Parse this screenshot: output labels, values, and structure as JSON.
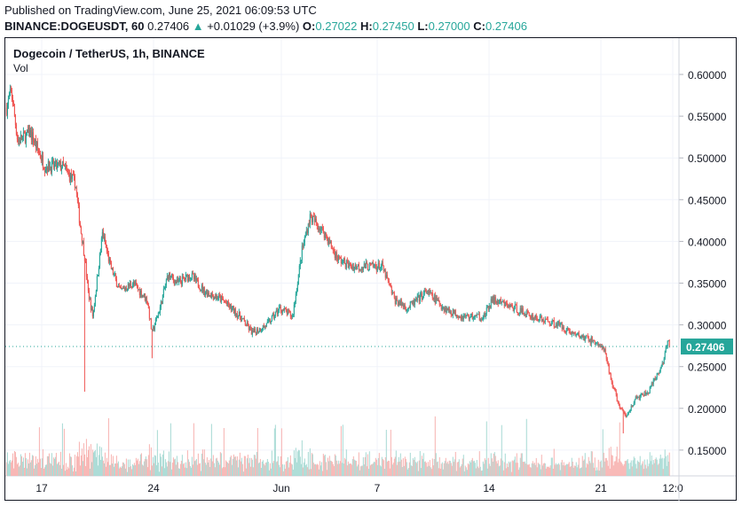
{
  "header": {
    "published": "Published on TradingView.com, June 25, 2021 06:09:53 UTC",
    "symbol": "BINANCE:DOGEUSDT, 60",
    "last": "0.27406",
    "change": "+0.01029 (+3.9%)",
    "o_label": "O:",
    "o": "0.27022",
    "h_label": "H:",
    "h": "0.27450",
    "l_label": "L:",
    "l": "0.27000",
    "c_label": "C:",
    "c": "0.27406"
  },
  "legend": {
    "title": "Dogecoin / TetherUS, 1h, BINANCE",
    "vol": "Vol"
  },
  "colors": {
    "up": "#26a69a",
    "down": "#ef5350",
    "up_vol": "#a5d9d3",
    "down_vol": "#f7b1af",
    "grid": "#f0f3fa",
    "axis_text": "#131722"
  },
  "chart_data": {
    "type": "candlestick",
    "title": "Dogecoin / TetherUS, 1h, BINANCE",
    "x_unit": "days since May 17 2021",
    "xlim": [
      -2.2,
      40.8
    ],
    "ylim": [
      0.125,
      0.625
    ],
    "y_ticks": [
      "0.60000",
      "0.55000",
      "0.50000",
      "0.45000",
      "0.40000",
      "0.35000",
      "0.30000",
      "0.25000",
      "0.20000",
      "0.15000"
    ],
    "y_tick_values": [
      0.6,
      0.55,
      0.5,
      0.45,
      0.4,
      0.35,
      0.3,
      0.25,
      0.2,
      0.15
    ],
    "x_ticks": [
      {
        "label": "17",
        "day": 0
      },
      {
        "label": "24",
        "day": 7
      },
      {
        "label": "Jun",
        "day": 15
      },
      {
        "label": "7",
        "day": 21
      },
      {
        "label": "14",
        "day": 28
      },
      {
        "label": "21",
        "day": 35
      },
      {
        "label": "12:0",
        "day": 39.5
      }
    ],
    "last_price_label": "0.27406",
    "last_price": 0.27406,
    "price_path": [
      [
        -2.2,
        0.56
      ],
      [
        -1.9,
        0.58
      ],
      [
        -1.5,
        0.52
      ],
      [
        -0.7,
        0.53
      ],
      [
        0.2,
        0.49
      ],
      [
        1.3,
        0.49
      ],
      [
        2.1,
        0.47
      ],
      [
        2.4,
        0.42
      ],
      [
        2.7,
        0.38
      ],
      [
        2.9,
        0.34
      ],
      [
        3.2,
        0.31
      ],
      [
        3.8,
        0.41
      ],
      [
        4.3,
        0.37
      ],
      [
        4.9,
        0.34
      ],
      [
        5.7,
        0.35
      ],
      [
        6.6,
        0.33
      ],
      [
        6.9,
        0.29
      ],
      [
        7.4,
        0.32
      ],
      [
        7.9,
        0.36
      ],
      [
        8.5,
        0.35
      ],
      [
        9.3,
        0.36
      ],
      [
        10.2,
        0.34
      ],
      [
        11.3,
        0.33
      ],
      [
        12.4,
        0.31
      ],
      [
        13.2,
        0.29
      ],
      [
        14.1,
        0.3
      ],
      [
        14.9,
        0.32
      ],
      [
        15.7,
        0.31
      ],
      [
        16.3,
        0.39
      ],
      [
        16.8,
        0.43
      ],
      [
        17.7,
        0.41
      ],
      [
        18.5,
        0.38
      ],
      [
        19.3,
        0.37
      ],
      [
        21.3,
        0.37
      ],
      [
        22.1,
        0.33
      ],
      [
        22.9,
        0.32
      ],
      [
        24.1,
        0.34
      ],
      [
        25.2,
        0.32
      ],
      [
        26.3,
        0.31
      ],
      [
        27.7,
        0.31
      ],
      [
        28.2,
        0.33
      ],
      [
        29.6,
        0.32
      ],
      [
        30.7,
        0.31
      ],
      [
        32.4,
        0.3
      ],
      [
        33.2,
        0.29
      ],
      [
        34.6,
        0.28
      ],
      [
        35.2,
        0.27
      ],
      [
        35.7,
        0.23
      ],
      [
        36.2,
        0.2
      ],
      [
        36.6,
        0.19
      ],
      [
        37.1,
        0.21
      ],
      [
        38.0,
        0.22
      ],
      [
        38.8,
        0.25
      ],
      [
        39.2,
        0.28
      ],
      [
        39.3,
        0.274
      ]
    ],
    "wicks": [
      {
        "day": 2.7,
        "low": 0.22
      },
      {
        "day": 6.9,
        "low": 0.26
      },
      {
        "day": 36.4,
        "low": 0.17
      }
    ]
  }
}
